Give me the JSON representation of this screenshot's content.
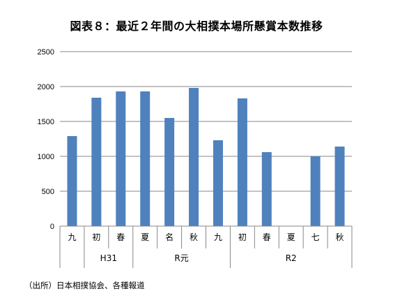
{
  "chart_data": {
    "type": "bar",
    "title": "図表８：最近２年間の大相撲本場所懸賞本数推移",
    "categories": [
      "九",
      "初",
      "春",
      "夏",
      "名",
      "秋",
      "九",
      "初",
      "春",
      "夏",
      "七",
      "秋"
    ],
    "groups": [
      {
        "label": "",
        "start": 0,
        "end": 0
      },
      {
        "label": "H31",
        "start": 1,
        "end": 2
      },
      {
        "label": "R元",
        "start": 3,
        "end": 6
      },
      {
        "label": "R2",
        "start": 7,
        "end": 11
      }
    ],
    "values": [
      1290,
      1840,
      1930,
      1930,
      1550,
      1980,
      1230,
      1830,
      1060,
      0,
      1000,
      1140
    ],
    "ylim": [
      0,
      2500
    ],
    "yticks": [
      "0",
      "500",
      "1000",
      "1500",
      "2000",
      "2500"
    ],
    "grid": true,
    "bar_color": "#4f81bd",
    "source": "（出所）日本相撲協会、各種報道"
  }
}
